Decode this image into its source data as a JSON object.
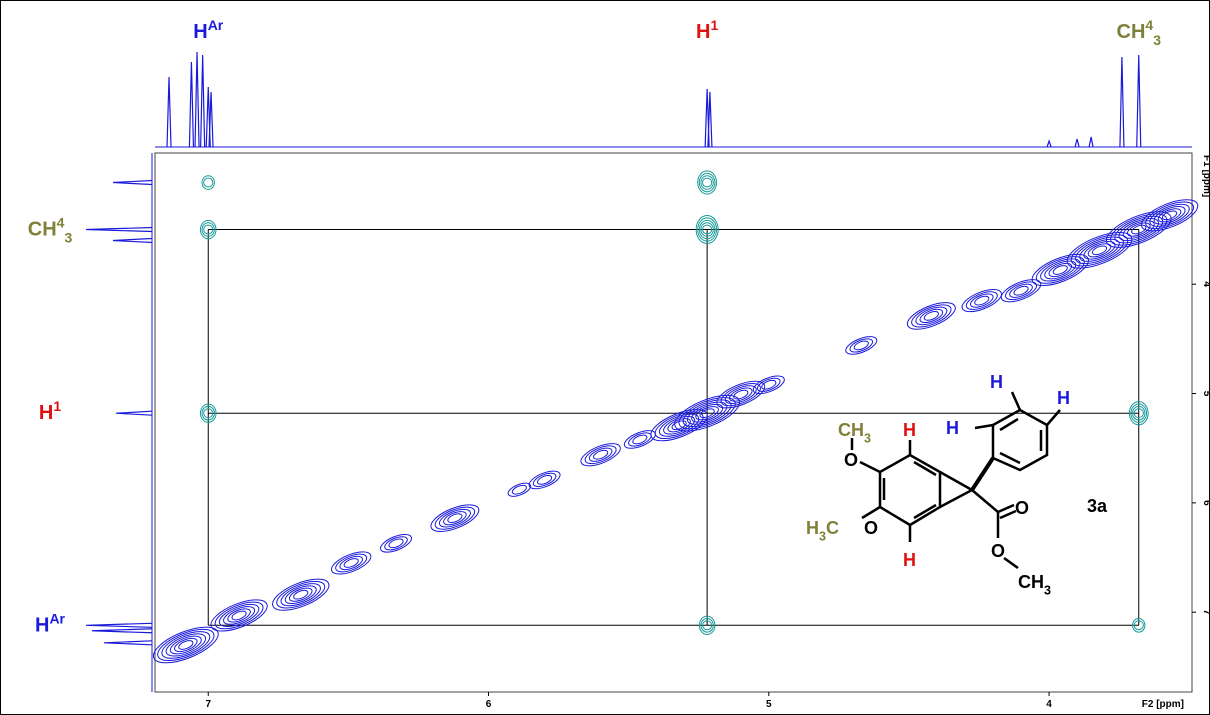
{
  "chart_data": {
    "type": "nmr2d",
    "xlabel": "F2 [ppm]",
    "ylabel": "F1 [ppm]",
    "xlim": [
      7.19,
      3.49
    ],
    "ylim": [
      2.8,
      7.73
    ],
    "xticks": [
      7,
      6,
      5,
      4
    ],
    "yticks": [
      4,
      5,
      6,
      7
    ],
    "diagonal": {
      "color": "#1a1adc",
      "f2": [
        7.08,
        6.89,
        6.67,
        6.49,
        6.33,
        6.12,
        5.89,
        5.8,
        5.6,
        5.46,
        5.32,
        5.22,
        5.1,
        5.0,
        4.67,
        4.42,
        4.24,
        4.1,
        3.96,
        3.82,
        3.68,
        3.57
      ],
      "f1": [
        7.3,
        7.03,
        6.84,
        6.55,
        6.37,
        6.14,
        5.88,
        5.79,
        5.56,
        5.42,
        5.29,
        5.18,
        5.01,
        4.92,
        4.56,
        4.29,
        4.15,
        4.06,
        3.87,
        3.69,
        3.5,
        3.37
      ],
      "intensity": [
        6,
        5,
        5,
        3,
        2,
        4,
        1,
        2,
        3,
        2,
        5,
        6,
        4,
        2,
        2,
        4,
        3,
        3,
        5,
        6,
        6,
        5
      ]
    },
    "cross_peaks": {
      "color": "#1a9a9a",
      "f2": [
        7.0,
        7.0,
        7.0,
        5.22,
        5.22,
        5.22,
        3.68,
        3.68
      ],
      "f1": [
        3.07,
        3.5,
        5.18,
        3.07,
        3.5,
        7.12,
        5.18,
        7.12
      ],
      "intensity": [
        1,
        2,
        2,
        3,
        4,
        2,
        3,
        1
      ]
    },
    "assignments": [
      {
        "base": "H",
        "sup": "Ar",
        "f2": 7.0,
        "f1": 7.12,
        "color": "#1a1adc"
      },
      {
        "base": "H",
        "sup": "1",
        "f2": 5.22,
        "f1": 5.18,
        "color": "#e01010"
      },
      {
        "base": "CH",
        "sup": "4",
        "sub": "3",
        "f2": 3.68,
        "f1": 3.5,
        "color": "#80803a"
      }
    ],
    "projection_f2": {
      "color": "#1a1adc",
      "shifts": [
        7.14,
        7.06,
        7.04,
        7.02,
        7.0,
        6.99,
        5.22,
        5.21,
        3.74,
        3.68,
        3.85,
        3.9,
        4.0
      ],
      "heights": [
        70,
        85,
        95,
        92,
        60,
        55,
        58,
        55,
        90,
        92,
        10,
        8,
        6
      ]
    },
    "projection_f1": {
      "color": "#1a1adc",
      "shifts": [
        3.07,
        3.5,
        3.6,
        5.18,
        7.12,
        7.17,
        7.28
      ],
      "heights": [
        65,
        110,
        65,
        60,
        110,
        100,
        80
      ]
    }
  },
  "structure": {
    "labels": [
      {
        "base": "CH",
        "sub": "3",
        "color": "#80803a"
      },
      {
        "base": "O",
        "color": "#000000"
      },
      {
        "base": "H",
        "color": "#e01010"
      },
      {
        "base": "H",
        "color": "#e01010"
      },
      {
        "base": "H",
        "sub": "3",
        "tail": "C",
        "color": "#80803a"
      },
      {
        "base": "O",
        "color": "#000000"
      },
      {
        "base": "H",
        "color": "#1a1adc"
      },
      {
        "base": "H",
        "color": "#1a1adc"
      },
      {
        "base": "H",
        "color": "#1a1adc"
      },
      {
        "base": "O",
        "color": "#000000"
      },
      {
        "base": "O",
        "color": "#000000"
      },
      {
        "base": "CH",
        "sub": "3",
        "color": "#000000"
      },
      {
        "base": "3a",
        "color": "#000000"
      }
    ]
  }
}
